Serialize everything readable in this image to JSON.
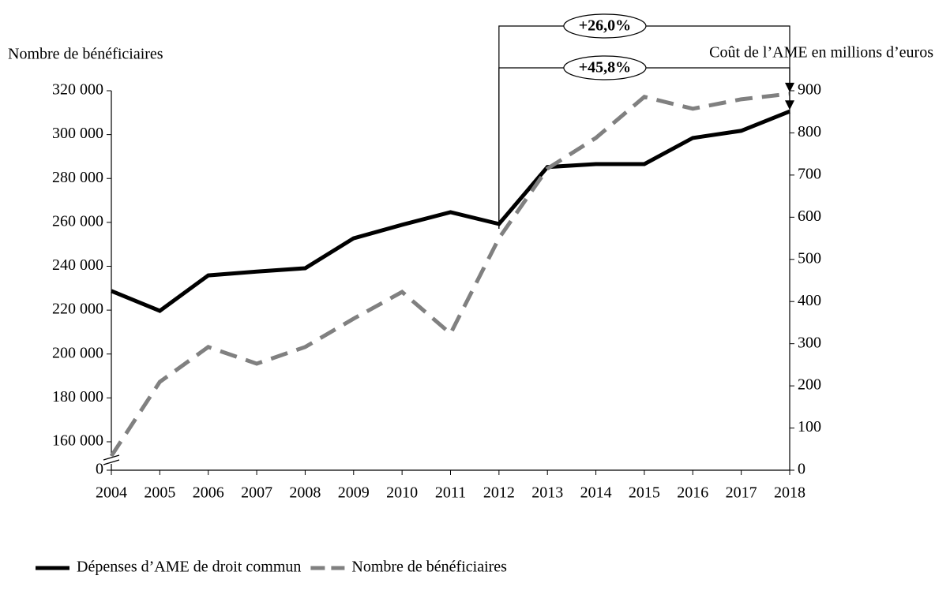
{
  "chart_data": {
    "type": "line",
    "y_label": "Nombre de bénéficiaires",
    "y2_label": "Coût de l’AME en millions d’euros",
    "categories": [
      "2004",
      "2005",
      "2006",
      "2007",
      "2008",
      "2009",
      "2010",
      "2011",
      "2012",
      "2013",
      "2014",
      "2015",
      "2016",
      "2017",
      "2018"
    ],
    "series": [
      {
        "name": "Dépenses d’AME de droit commun",
        "color": "#000000",
        "dash": false,
        "axis": "y2",
        "values": [
          425,
          378,
          462,
          471,
          479,
          550,
          582,
          612,
          584,
          719,
          726,
          726,
          788,
          805,
          851
        ]
      },
      {
        "name": "Nombre de bénéficiaires",
        "color": "#808080",
        "dash": true,
        "axis": "y",
        "values": [
          153500,
          187300,
          203200,
          195600,
          203200,
          216100,
          228300,
          209300,
          252800,
          284500,
          298500,
          317200,
          311800,
          316100,
          318600
        ]
      }
    ],
    "ylim": [
      147050,
      320000
    ],
    "axis_break": true,
    "yticks": [
      {
        "value": 0,
        "label": "0"
      },
      {
        "value": 160000,
        "label": "160 000"
      },
      {
        "value": 180000,
        "label": "180 000"
      },
      {
        "value": 200000,
        "label": "200 000"
      },
      {
        "value": 220000,
        "label": "220 000"
      },
      {
        "value": 240000,
        "label": "240 000"
      },
      {
        "value": 260000,
        "label": "260 000"
      },
      {
        "value": 280000,
        "label": "280 000"
      },
      {
        "value": 300000,
        "label": "300 000"
      },
      {
        "value": 320000,
        "label": "320 000"
      }
    ],
    "y2lim": [
      0,
      900
    ],
    "y2ticks": [
      0,
      100,
      200,
      300,
      400,
      500,
      600,
      700,
      800,
      900
    ],
    "annotations": [
      {
        "text": "+26,0%"
      },
      {
        "text": "+45,8%"
      }
    ],
    "legend": "bottom-left"
  }
}
